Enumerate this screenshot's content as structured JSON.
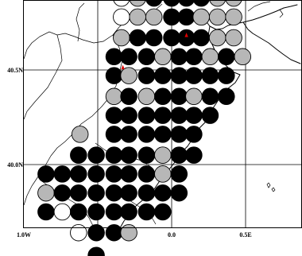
{
  "map": {
    "xticks": [
      {
        "lon": -1.0,
        "label": "1.0W"
      },
      {
        "lon": -0.5,
        "label": "0.5W"
      },
      {
        "lon": 0.0,
        "label": "0.0"
      },
      {
        "lon": 0.5,
        "label": "0.5E"
      }
    ],
    "yticks": [
      {
        "lat": 40.0,
        "label": "40.0N"
      },
      {
        "lat": 40.5,
        "label": "40.5N"
      }
    ],
    "colors": {
      "filled": "#000000",
      "grey": "#b7b7b7",
      "open": "#ffffff",
      "marker": "#dd0000"
    },
    "rows": [
      {
        "lat": 40.98,
        "cells": [
          [
            "-0.23",
            "grey"
          ],
          [
            "0.08",
            "grey"
          ],
          [
            "0.25",
            "grey"
          ]
        ]
      },
      {
        "lat": 40.88,
        "cells": [
          [
            "-0.34",
            "open"
          ],
          [
            "-0.23",
            "grey"
          ],
          [
            "-0.12",
            "filled"
          ],
          [
            "0.00",
            "filled"
          ],
          [
            "0.10",
            "filled"
          ],
          [
            "0.20",
            "filled"
          ],
          [
            "0.31",
            "grey"
          ],
          [
            "0.42",
            "grey"
          ]
        ]
      },
      {
        "lat": 40.78,
        "cells": [
          [
            "-0.34",
            "open"
          ],
          [
            "-0.23",
            "grey"
          ],
          [
            "-0.12",
            "grey"
          ],
          [
            "0.00",
            "filled"
          ],
          [
            "0.10",
            "filled"
          ],
          [
            "0.20",
            "grey"
          ],
          [
            "0.31",
            "grey"
          ],
          [
            "0.42",
            "grey"
          ]
        ]
      },
      {
        "lat": 40.67,
        "cells": [
          [
            "-0.34",
            "grey"
          ],
          [
            "-0.23",
            "filled"
          ],
          [
            "-0.12",
            "filled"
          ],
          [
            "0.00",
            "filled"
          ],
          [
            "0.10",
            "filled"
          ],
          [
            "0.20",
            "filled"
          ],
          [
            "0.31",
            "grey"
          ],
          [
            "0.42",
            "grey"
          ]
        ]
      },
      {
        "lat": 40.57,
        "cells": [
          [
            "-0.39",
            "filled"
          ],
          [
            "-0.29",
            "filled"
          ],
          [
            "-0.17",
            "filled"
          ],
          [
            "-0.06",
            "grey"
          ],
          [
            "0.05",
            "filled"
          ],
          [
            "0.15",
            "filled"
          ],
          [
            "0.26",
            "grey"
          ],
          [
            "0.37",
            "filled"
          ],
          [
            "0.48",
            "grey"
          ]
        ]
      },
      {
        "lat": 40.47,
        "cells": [
          [
            "-0.39",
            "filled"
          ],
          [
            "-0.29",
            "grey"
          ],
          [
            "-0.17",
            "filled"
          ],
          [
            "-0.06",
            "filled"
          ],
          [
            "0.05",
            "filled"
          ],
          [
            "0.15",
            "filled"
          ],
          [
            "0.26",
            "filled"
          ],
          [
            "0.37",
            "filled"
          ]
        ]
      },
      {
        "lat": 40.36,
        "cells": [
          [
            "-0.39",
            "grey"
          ],
          [
            "-0.29",
            "filled"
          ],
          [
            "-0.17",
            "grey"
          ],
          [
            "-0.06",
            "filled"
          ],
          [
            "0.05",
            "filled"
          ],
          [
            "0.15",
            "grey"
          ],
          [
            "0.26",
            "filled"
          ],
          [
            "0.37",
            "filled"
          ]
        ]
      },
      {
        "lat": 40.26,
        "cells": [
          [
            "-0.39",
            "filled"
          ],
          [
            "-0.29",
            "filled"
          ],
          [
            "-0.17",
            "filled"
          ],
          [
            "-0.06",
            "filled"
          ],
          [
            "0.05",
            "filled"
          ],
          [
            "0.15",
            "filled"
          ],
          [
            "0.26",
            "filled"
          ]
        ]
      },
      {
        "lat": 40.16,
        "cells": [
          [
            "-0.62",
            "grey"
          ],
          [
            "-0.39",
            "filled"
          ],
          [
            "-0.29",
            "filled"
          ],
          [
            "-0.17",
            "filled"
          ],
          [
            "-0.06",
            "filled"
          ],
          [
            "0.05",
            "filled"
          ],
          [
            "0.15",
            "filled"
          ]
        ]
      },
      {
        "lat": 40.05,
        "cells": [
          [
            "-0.63",
            "filled"
          ],
          [
            "-0.51",
            "filled"
          ],
          [
            "-0.39",
            "filled"
          ],
          [
            "-0.29",
            "filled"
          ],
          [
            "-0.17",
            "filled"
          ],
          [
            "-0.06",
            "grey"
          ],
          [
            "0.05",
            "filled"
          ],
          [
            "0.15",
            "filled"
          ]
        ]
      },
      {
        "lat": 39.95,
        "cells": [
          [
            "-0.85",
            "filled"
          ],
          [
            "-0.74",
            "filled"
          ],
          [
            "-0.63",
            "filled"
          ],
          [
            "-0.51",
            "filled"
          ],
          [
            "-0.39",
            "filled"
          ],
          [
            "-0.29",
            "filled"
          ],
          [
            "-0.17",
            "filled"
          ],
          [
            "-0.06",
            "grey"
          ],
          [
            "0.05",
            "filled"
          ]
        ]
      },
      {
        "lat": 39.85,
        "cells": [
          [
            "-0.85",
            "grey"
          ],
          [
            "-0.74",
            "filled"
          ],
          [
            "-0.63",
            "filled"
          ],
          [
            "-0.51",
            "filled"
          ],
          [
            "-0.39",
            "filled"
          ],
          [
            "-0.29",
            "filled"
          ],
          [
            "-0.17",
            "filled"
          ],
          [
            "-0.06",
            "filled"
          ],
          [
            "0.05",
            "filled"
          ]
        ]
      },
      {
        "lat": 39.75,
        "cells": [
          [
            "-0.85",
            "filled"
          ],
          [
            "-0.74",
            "open"
          ],
          [
            "-0.63",
            "filled"
          ],
          [
            "-0.51",
            "filled"
          ],
          [
            "-0.39",
            "filled"
          ],
          [
            "-0.29",
            "filled"
          ],
          [
            "-0.17",
            "filled"
          ],
          [
            "-0.06",
            "filled"
          ]
        ]
      },
      {
        "lat": 39.64,
        "cells": [
          [
            "-0.63",
            "open"
          ],
          [
            "-0.51",
            "filled"
          ],
          [
            "-0.39",
            "filled"
          ],
          [
            "-0.29",
            "grey"
          ]
        ]
      },
      {
        "lat": 39.52,
        "cells": [
          [
            "-0.51",
            "filled"
          ]
        ]
      }
    ],
    "stations": [
      {
        "lon": -0.33,
        "lat": 40.51
      },
      {
        "lon": 0.1,
        "lat": 40.68
      }
    ]
  }
}
